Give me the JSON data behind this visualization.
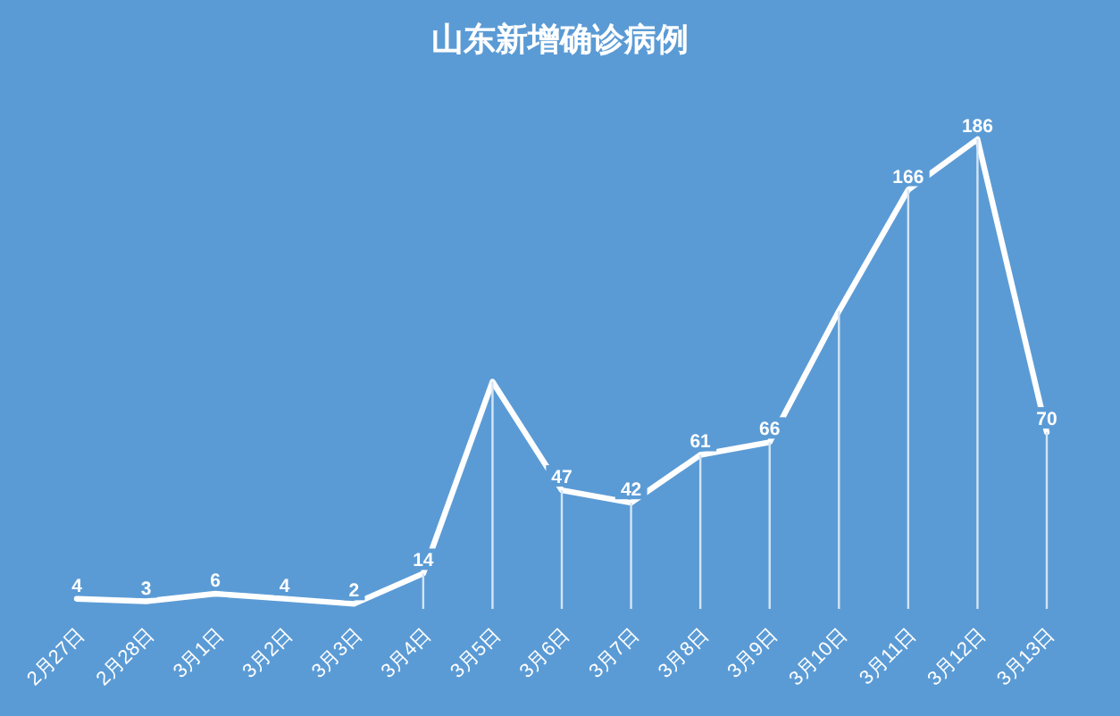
{
  "chart_data": {
    "type": "line",
    "title": "山东新增确诊病例",
    "categories": [
      "2月27日",
      "2月28日",
      "3月1日",
      "3月2日",
      "3月3日",
      "3月4日",
      "3月5日",
      "3月6日",
      "3月7日",
      "3月8日",
      "3月9日",
      "3月10日",
      "3月11日",
      "3月12日",
      "3月13日"
    ],
    "series": [
      {
        "type": "bar",
        "color": "#d3e5f6",
        "values": [
          null,
          null,
          null,
          null,
          null,
          14,
          90,
          47,
          42,
          61,
          66,
          118,
          166,
          186,
          70
        ]
      },
      {
        "color": "#ffffff",
        "values": [
          4,
          3,
          6,
          4,
          2,
          14,
          90,
          47,
          42,
          61,
          66,
          118,
          166,
          186,
          70
        ],
        "value_labels": [
          "4",
          "3",
          "6",
          "4",
          "2",
          "14",
          null,
          "47",
          "42",
          "61",
          "66",
          null,
          "166",
          "186",
          "70"
        ]
      }
    ],
    "tick_labels": "x",
    "line_style": "solid"
  }
}
